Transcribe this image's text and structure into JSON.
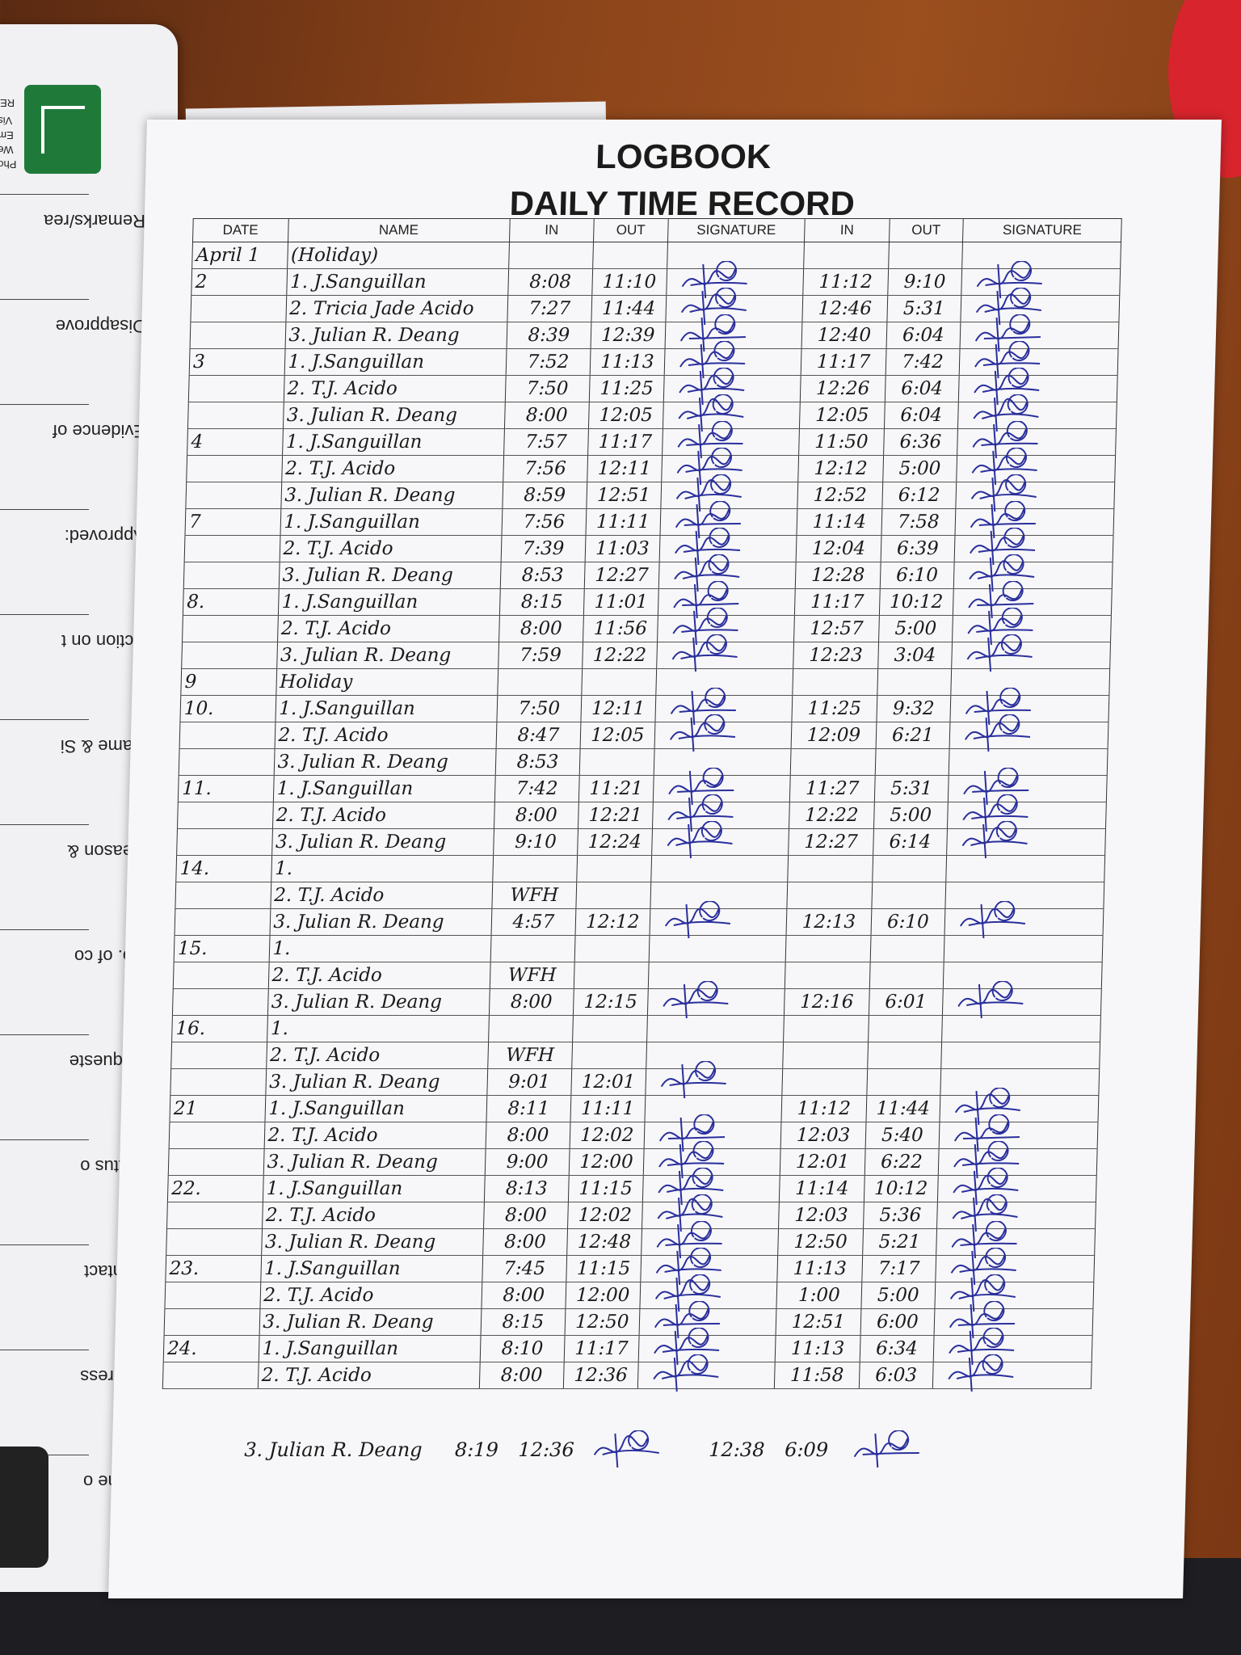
{
  "left_page": {
    "labels": [
      "Remarks/rea",
      "Disapprove",
      "Evidence of",
      "Approved:",
      "Action on t",
      "Name & Si",
      "Reason &",
      "No. of co",
      "Requeste",
      "Status o",
      "Contact",
      "Address",
      "Name o"
    ],
    "header_fragments": [
      "REQ",
      "Visa",
      "Ema",
      "Web",
      "Phon"
    ]
  },
  "header": {
    "title": "LOGBOOK",
    "subtitle": "DAILY TIME RECORD"
  },
  "columns": [
    "DATE",
    "NAME",
    "IN",
    "OUT",
    "SIGNATURE",
    "IN",
    "OUT",
    "SIGNATURE"
  ],
  "colors": {
    "ink_black": "#1a1a1a",
    "ink_blue": "#2a2f9c",
    "paper": "#f7f7f9"
  },
  "rows": [
    {
      "date": "April 1",
      "name": "(Holiday)",
      "in1": "",
      "out1": "",
      "sig1": false,
      "in2": "",
      "out2": "",
      "sig2": false
    },
    {
      "date": "2",
      "name": "1. J.Sanguillan",
      "in1": "8:08",
      "out1": "11:10",
      "sig1": true,
      "in2": "11:12",
      "out2": "9:10",
      "sig2": true
    },
    {
      "date": "",
      "name": "2. Tricia Jade Acido",
      "in1": "7:27",
      "out1": "11:44",
      "sig1": true,
      "in2": "12:46",
      "out2": "5:31",
      "sig2": true
    },
    {
      "date": "",
      "name": "3. Julian R. Deang",
      "in1": "8:39",
      "out1": "12:39",
      "sig1": true,
      "in2": "12:40",
      "out2": "6:04",
      "sig2": true
    },
    {
      "date": "3",
      "name": "1. J.Sanguillan",
      "in1": "7:52",
      "out1": "11:13",
      "sig1": true,
      "in2": "11:17",
      "out2": "7:42",
      "sig2": true
    },
    {
      "date": "",
      "name": "2. T.J. Acido",
      "in1": "7:50",
      "out1": "11:25",
      "sig1": true,
      "in2": "12:26",
      "out2": "6:04",
      "sig2": true
    },
    {
      "date": "",
      "name": "3. Julian R. Deang",
      "in1": "8:00",
      "out1": "12:05",
      "sig1": true,
      "in2": "12:05",
      "out2": "6:04",
      "sig2": true
    },
    {
      "date": "4",
      "name": "1. J.Sanguillan",
      "in1": "7:57",
      "out1": "11:17",
      "sig1": true,
      "in2": "11:50",
      "out2": "6:36",
      "sig2": true
    },
    {
      "date": "",
      "name": "2. T.J. Acido",
      "in1": "7:56",
      "out1": "12:11",
      "sig1": true,
      "in2": "12:12",
      "out2": "5:00",
      "sig2": true
    },
    {
      "date": "",
      "name": "3. Julian R. Deang",
      "in1": "8:59",
      "out1": "12:51",
      "sig1": true,
      "in2": "12:52",
      "out2": "6:12",
      "sig2": true
    },
    {
      "date": "7",
      "name": "1. J.Sanguillan",
      "in1": "7:56",
      "out1": "11:11",
      "sig1": true,
      "in2": "11:14",
      "out2": "7:58",
      "sig2": true
    },
    {
      "date": "",
      "name": "2. T.J. Acido",
      "in1": "7:39",
      "out1": "11:03",
      "sig1": true,
      "in2": "12:04",
      "out2": "6:39",
      "sig2": true
    },
    {
      "date": "",
      "name": "3. Julian R. Deang",
      "in1": "8:53",
      "out1": "12:27",
      "sig1": true,
      "in2": "12:28",
      "out2": "6:10",
      "sig2": true
    },
    {
      "date": "8.",
      "name": "1. J.Sanguillan",
      "in1": "8:15",
      "out1": "11:01",
      "sig1": true,
      "in2": "11:17",
      "out2": "10:12",
      "sig2": true
    },
    {
      "date": "",
      "name": "2. T.J. Acido",
      "in1": "8:00",
      "out1": "11:56",
      "sig1": true,
      "in2": "12:57",
      "out2": "5:00",
      "sig2": true
    },
    {
      "date": "",
      "name": "3. Julian R. Deang",
      "in1": "7:59",
      "out1": "12:22",
      "sig1": true,
      "in2": "12:23",
      "out2": "3:04",
      "sig2": true
    },
    {
      "date": "9",
      "name": "Holiday",
      "in1": "",
      "out1": "",
      "sig1": false,
      "in2": "",
      "out2": "",
      "sig2": false
    },
    {
      "date": "10.",
      "name": "1. J.Sanguillan",
      "in1": "7:50",
      "out1": "12:11",
      "sig1": true,
      "in2": "11:25",
      "out2": "9:32",
      "sig2": true
    },
    {
      "date": "",
      "name": "2. T.J. Acido",
      "in1": "8:47",
      "out1": "12:05",
      "sig1": true,
      "in2": "12:09",
      "out2": "6:21",
      "sig2": true
    },
    {
      "date": "",
      "name": "3. Julian R. Deang",
      "in1": "8:53",
      "out1": "",
      "sig1": false,
      "in2": "",
      "out2": "",
      "sig2": false
    },
    {
      "date": "11.",
      "name": "1. J.Sanguillan",
      "in1": "7:42",
      "out1": "11:21",
      "sig1": true,
      "in2": "11:27",
      "out2": "5:31",
      "sig2": true
    },
    {
      "date": "",
      "name": "2. T.J. Acido",
      "in1": "8:00",
      "out1": "12:21",
      "sig1": true,
      "in2": "12:22",
      "out2": "5:00",
      "sig2": true
    },
    {
      "date": "",
      "name": "3. Julian R. Deang",
      "in1": "9:10",
      "out1": "12:24",
      "sig1": true,
      "in2": "12:27",
      "out2": "6:14",
      "sig2": true
    },
    {
      "date": "14.",
      "name": "1.",
      "in1": "",
      "out1": "",
      "sig1": false,
      "in2": "",
      "out2": "",
      "sig2": false
    },
    {
      "date": "",
      "name": "2. T.J. Acido",
      "in1": "WFH",
      "out1": "",
      "sig1": false,
      "in2": "",
      "out2": "",
      "sig2": false
    },
    {
      "date": "",
      "name": "3. Julian R. Deang",
      "in1": "4:57",
      "out1": "12:12",
      "sig1": true,
      "in2": "12:13",
      "out2": "6:10",
      "sig2": true
    },
    {
      "date": "15.",
      "name": "1.",
      "in1": "",
      "out1": "",
      "sig1": false,
      "in2": "",
      "out2": "",
      "sig2": false
    },
    {
      "date": "",
      "name": "2. T.J. Acido",
      "in1": "WFH",
      "out1": "",
      "sig1": false,
      "in2": "",
      "out2": "",
      "sig2": false
    },
    {
      "date": "",
      "name": "3. Julian R. Deang",
      "in1": "8:00",
      "out1": "12:15",
      "sig1": true,
      "in2": "12:16",
      "out2": "6:01",
      "sig2": true
    },
    {
      "date": "16.",
      "name": "1.",
      "in1": "",
      "out1": "",
      "sig1": false,
      "in2": "",
      "out2": "",
      "sig2": false
    },
    {
      "date": "",
      "name": "2. T.J. Acido",
      "in1": "WFH",
      "out1": "",
      "sig1": false,
      "in2": "",
      "out2": "",
      "sig2": false
    },
    {
      "date": "",
      "name": "3. Julian R. Deang",
      "in1": "9:01",
      "out1": "12:01",
      "sig1": true,
      "in2": "",
      "out2": "",
      "sig2": false
    },
    {
      "date": "21",
      "name": "1. J.Sanguillan",
      "in1": "8:11",
      "out1": "11:11",
      "sig1": false,
      "in2": "11:12",
      "out2": "11:44",
      "sig2": true
    },
    {
      "date": "",
      "name": "2. T.J. Acido",
      "in1": "8:00",
      "out1": "12:02",
      "sig1": true,
      "in2": "12:03",
      "out2": "5:40",
      "sig2": true
    },
    {
      "date": "",
      "name": "3. Julian R. Deang",
      "in1": "9:00",
      "out1": "12:00",
      "sig1": true,
      "in2": "12:01",
      "out2": "6:22",
      "sig2": true
    },
    {
      "date": "22.",
      "name": "1. J.Sanguillan",
      "in1": "8:13",
      "out1": "11:15",
      "sig1": true,
      "in2": "11:14",
      "out2": "10:12",
      "sig2": true
    },
    {
      "date": "",
      "name": "2. T.J. Acido",
      "in1": "8:00",
      "out1": "12:02",
      "sig1": true,
      "in2": "12:03",
      "out2": "5:36",
      "sig2": true
    },
    {
      "date": "",
      "name": "3. Julian R. Deang",
      "in1": "8:00",
      "out1": "12:48",
      "sig1": true,
      "in2": "12:50",
      "out2": "5:21",
      "sig2": true
    },
    {
      "date": "23.",
      "name": "1. J.Sanguillan",
      "in1": "7:45",
      "out1": "11:15",
      "sig1": true,
      "in2": "11:13",
      "out2": "7:17",
      "sig2": true
    },
    {
      "date": "",
      "name": "2. T.J. Acido",
      "in1": "8:00",
      "out1": "12:00",
      "sig1": true,
      "in2": "1:00",
      "out2": "5:00",
      "sig2": true
    },
    {
      "date": "",
      "name": "3. Julian R. Deang",
      "in1": "8:15",
      "out1": "12:50",
      "sig1": true,
      "in2": "12:51",
      "out2": "6:00",
      "sig2": true
    },
    {
      "date": "24.",
      "name": "1. J.Sanguillan",
      "in1": "8:10",
      "out1": "11:17",
      "sig1": true,
      "in2": "11:13",
      "out2": "6:34",
      "sig2": true
    },
    {
      "date": "",
      "name": "2. T.J. Acido",
      "in1": "8:00",
      "out1": "12:36",
      "sig1": true,
      "in2": "11:58",
      "out2": "6:03",
      "sig2": true
    }
  ],
  "extra_row": {
    "name": "3. Julian R. Deang",
    "in1": "8:19",
    "out1": "12:36",
    "sig1": true,
    "in2": "12:38",
    "out2": "6:09",
    "sig2": true
  }
}
